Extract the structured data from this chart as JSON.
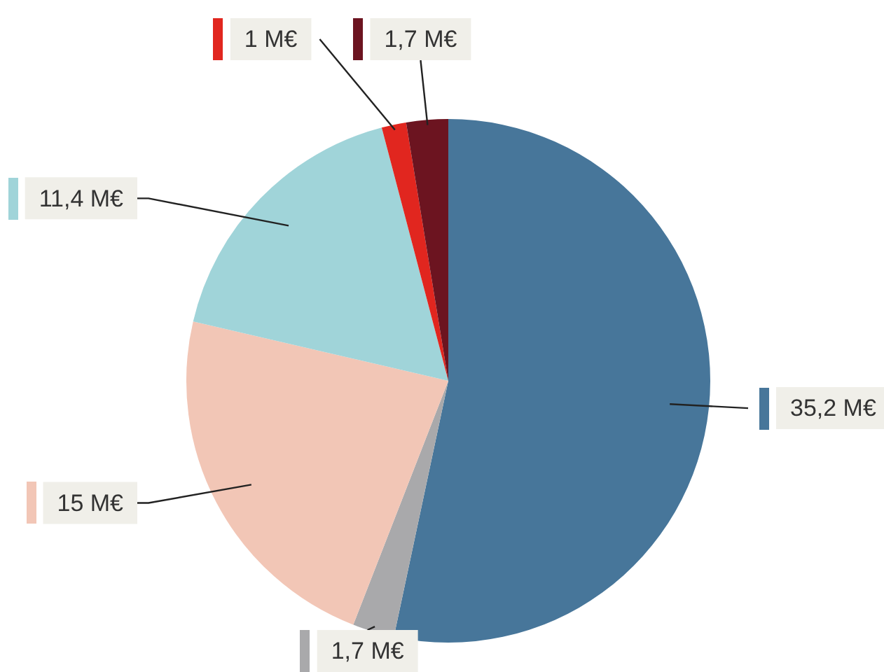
{
  "chart_data": {
    "type": "pie",
    "categories": [
      null,
      null,
      null,
      null,
      null,
      null
    ],
    "values": [
      35.2,
      1.7,
      15,
      11.4,
      1,
      1.7
    ],
    "colors": [
      "#47769a",
      "#a9a9ab",
      "#f2c6b6",
      "#a0d4d9",
      "#e1261f",
      "#6c1420"
    ],
    "value_labels": [
      "35,2 M€",
      "1,7 M€",
      "15 M€",
      "11,4 M€",
      "1 M€",
      "1,7 M€"
    ],
    "legend": false
  }
}
